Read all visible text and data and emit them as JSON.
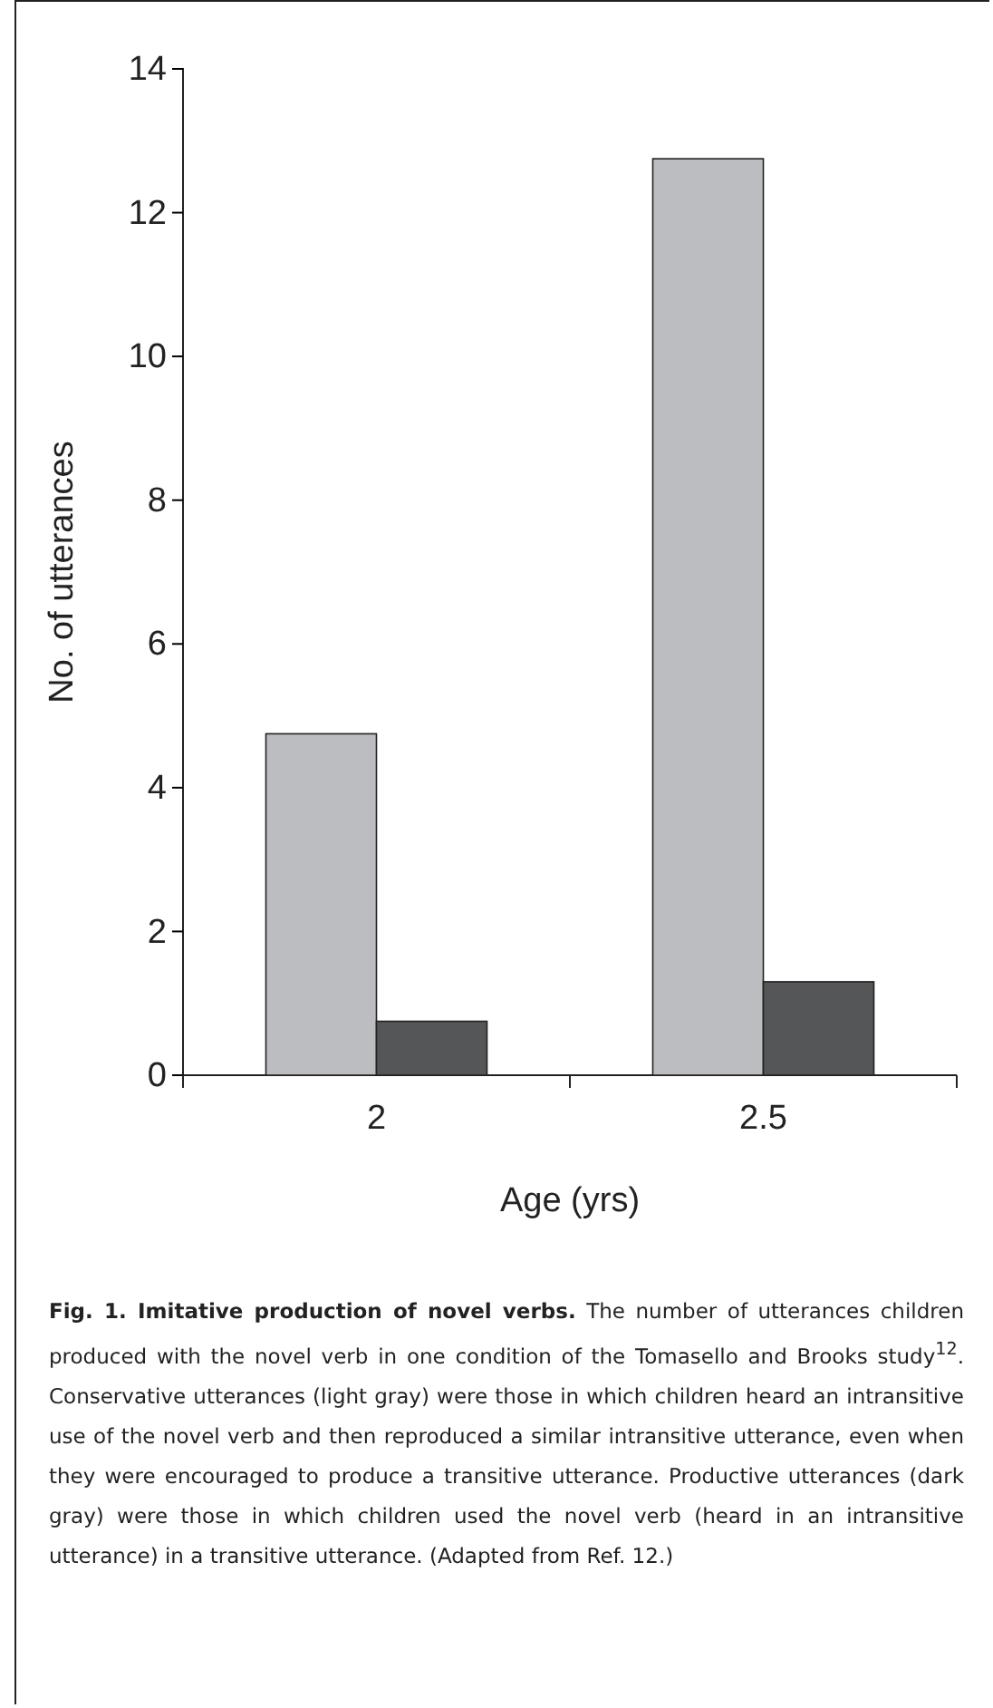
{
  "chart_data": {
    "type": "bar",
    "title": "Fig. 1. Imitative production of novel verbs.",
    "xlabel": "Age (yrs)",
    "ylabel": "No. of utterances",
    "categories": [
      "2",
      "2.5"
    ],
    "series": [
      {
        "color": "#bcbdc0",
        "values": [
          4.75,
          12.75
        ]
      },
      {
        "color": "#555658",
        "values": [
          0.75,
          1.3
        ]
      }
    ],
    "ylim": [
      0,
      14
    ],
    "yticks": [
      0,
      2,
      4,
      6,
      8,
      10,
      12,
      14
    ],
    "grid": false,
    "legend": false,
    "annotations": [
      "The number of utterances children produced with the novel verb in one condition of the Tomasello and Brooks study$^{12}$. Conservative utterances (light gray) were those in which children heard an intransitive use of the novel verb and then reproduced a similar intransitive utterance, even when they were encouraged to produce a transitive utterance. Productive utterances (dark gray) were those in which children used the novel verb (heard in an intransitive utterance) in a transitive utterance. (Adapted from Ref. 12.)"
    ]
  }
}
